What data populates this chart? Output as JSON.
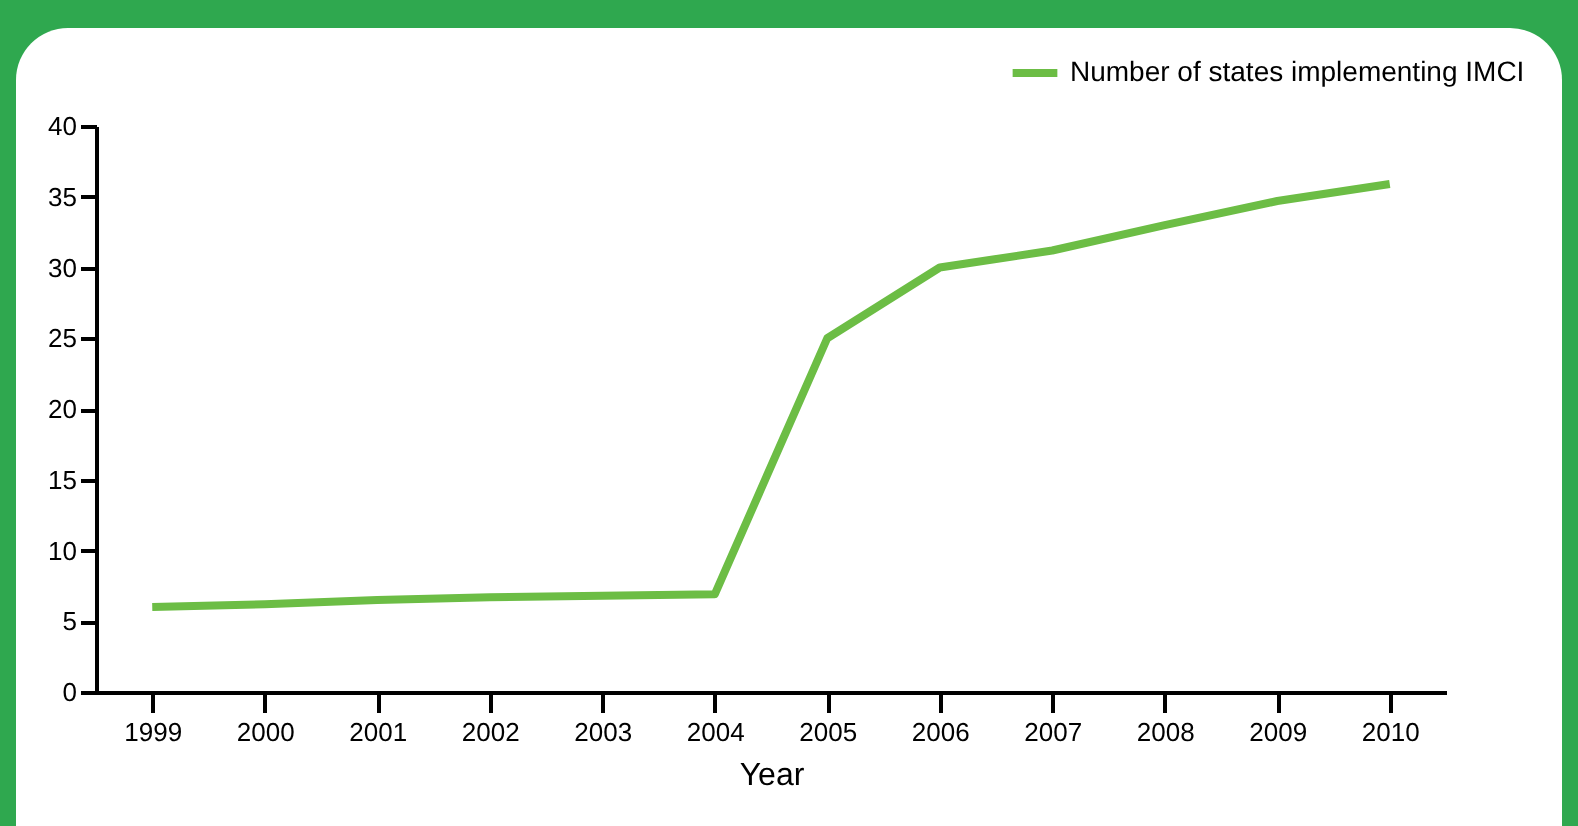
{
  "chart_data": {
    "type": "line",
    "xlabel": "Year",
    "categories": [
      "1999",
      "2000",
      "2001",
      "2002",
      "2003",
      "2004",
      "2005",
      "2006",
      "2007",
      "2008",
      "2009",
      "2010"
    ],
    "series": [
      {
        "name": "Number of states implementing IMCI",
        "color": "#6cbd45",
        "values": [
          6,
          6.2,
          6.5,
          6.7,
          6.8,
          6.9,
          25,
          30,
          31.2,
          33,
          34.7,
          35.9
        ]
      }
    ],
    "ylim": [
      0,
      40
    ],
    "yticks": [
      0,
      5,
      10,
      15,
      20,
      25,
      30,
      35,
      40
    ],
    "grid": false,
    "legend": "top right",
    "marker": "none",
    "line_style": "solid"
  }
}
